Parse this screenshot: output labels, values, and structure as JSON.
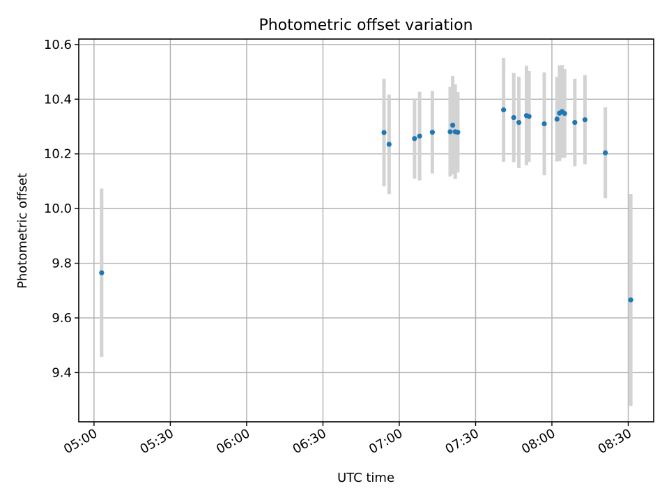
{
  "chart_data": {
    "type": "scatter",
    "title": "Photometric offset variation",
    "xlabel": "UTC time",
    "ylabel": "Photometric offset",
    "x_tick_labels": [
      "05:00",
      "05:30",
      "06:00",
      "06:30",
      "07:00",
      "07:30",
      "08:00",
      "08:30"
    ],
    "y_tick_labels": [
      "9.4",
      "9.6",
      "9.8",
      "10.0",
      "10.2",
      "10.4",
      "10.6"
    ],
    "y_ticks": [
      9.4,
      9.6,
      9.8,
      10.0,
      10.2,
      10.4,
      10.6
    ],
    "xlim": [
      "04:54",
      "08:40"
    ],
    "ylim": [
      9.22,
      10.62
    ],
    "grid": true,
    "colors": {
      "point": "#1f77b4",
      "errorbar": "#d3d3d3"
    },
    "points": [
      {
        "x": "05:03",
        "y": 9.765,
        "err": 0.308
      },
      {
        "x": "06:54",
        "y": 10.278,
        "err": 0.197
      },
      {
        "x": "06:56",
        "y": 10.235,
        "err": 0.182
      },
      {
        "x": "07:06",
        "y": 10.256,
        "err": 0.147
      },
      {
        "x": "07:08",
        "y": 10.265,
        "err": 0.162
      },
      {
        "x": "07:13",
        "y": 10.279,
        "err": 0.151
      },
      {
        "x": "07:20",
        "y": 10.281,
        "err": 0.164
      },
      {
        "x": "07:21",
        "y": 10.305,
        "err": 0.18
      },
      {
        "x": "07:22",
        "y": 10.281,
        "err": 0.173
      },
      {
        "x": "07:23",
        "y": 10.279,
        "err": 0.147
      },
      {
        "x": "07:41",
        "y": 10.361,
        "err": 0.19
      },
      {
        "x": "07:45",
        "y": 10.333,
        "err": 0.163
      },
      {
        "x": "07:47",
        "y": 10.315,
        "err": 0.167
      },
      {
        "x": "07:50",
        "y": 10.34,
        "err": 0.182
      },
      {
        "x": "07:51",
        "y": 10.337,
        "err": 0.166
      },
      {
        "x": "07:57",
        "y": 10.31,
        "err": 0.188
      },
      {
        "x": "08:02",
        "y": 10.327,
        "err": 0.155
      },
      {
        "x": "08:03",
        "y": 10.349,
        "err": 0.175
      },
      {
        "x": "08:04",
        "y": 10.355,
        "err": 0.17
      },
      {
        "x": "08:05",
        "y": 10.348,
        "err": 0.162
      },
      {
        "x": "08:09",
        "y": 10.315,
        "err": 0.16
      },
      {
        "x": "08:13",
        "y": 10.325,
        "err": 0.163
      },
      {
        "x": "08:21",
        "y": 10.204,
        "err": 0.166
      },
      {
        "x": "08:31",
        "y": 9.666,
        "err": 0.388
      }
    ]
  }
}
